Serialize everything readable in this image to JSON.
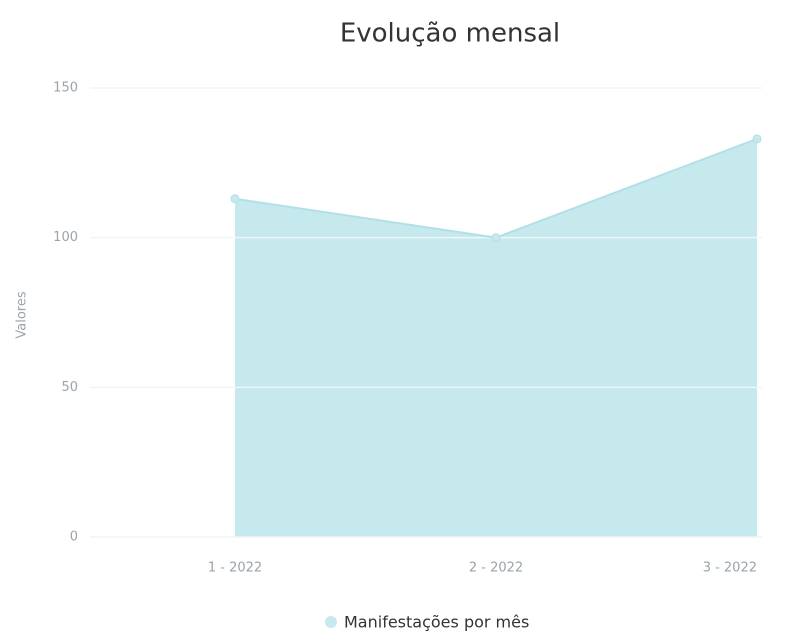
{
  "chart_data": {
    "type": "area",
    "title": "Evolução mensal",
    "y_label": "Valores",
    "categories": [
      "1 - 2022",
      "2 - 2022",
      "3 - 2022"
    ],
    "series": [
      {
        "name": "Manifestações por mês",
        "color": "#c6e9ee",
        "values": [
          113,
          100,
          133
        ]
      }
    ],
    "ylim": [
      0,
      150
    ],
    "yticks": [
      0,
      50,
      100,
      150
    ],
    "grid": true
  }
}
